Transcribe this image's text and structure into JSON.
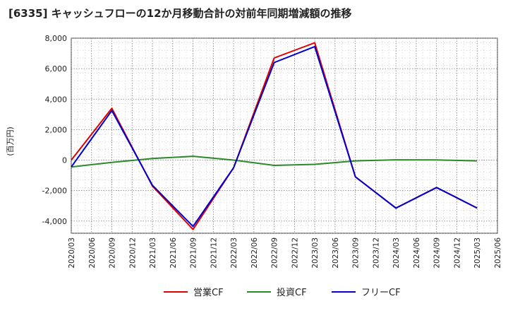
{
  "chart_data": {
    "type": "line",
    "title": "[6335]  キャッシュフローの12か月移動合計の対前年同期増減額の推移",
    "ylabel": "(百万円)",
    "xlabel": "",
    "ylim": [
      -4800,
      8000
    ],
    "yticks": [
      -4000,
      -2000,
      0,
      2000,
      4000,
      6000,
      8000
    ],
    "ytick_labels": [
      "-4,000",
      "-2,000",
      "0",
      "2,000",
      "4,000",
      "6,000",
      "8,000"
    ],
    "grid": true,
    "legend_position": "bottom",
    "x_ticks": [
      "2020/03",
      "2020/06",
      "2020/09",
      "2020/12",
      "2021/03",
      "2021/06",
      "2021/09",
      "2021/12",
      "2022/03",
      "2022/06",
      "2022/09",
      "2022/12",
      "2023/03",
      "2023/06",
      "2023/09",
      "2023/12",
      "2024/03",
      "2024/06",
      "2024/09",
      "2024/12",
      "2025/03",
      "2025/06"
    ],
    "series": [
      {
        "name": "営業CF",
        "color": "#e00000",
        "x": [
          "2020/03",
          "2020/09",
          "2021/03",
          "2021/09",
          "2022/03",
          "2022/09",
          "2023/03",
          "2023/09",
          "2024/03",
          "2024/09",
          "2025/03"
        ],
        "values": [
          0,
          3400,
          -1700,
          -4550,
          -500,
          6700,
          7700,
          -1100,
          -3150,
          -1800,
          -3150
        ]
      },
      {
        "name": "投資CF",
        "color": "#2a8a2a",
        "x": [
          "2020/03",
          "2020/09",
          "2021/03",
          "2021/09",
          "2022/03",
          "2022/09",
          "2023/03",
          "2023/09",
          "2024/03",
          "2024/09",
          "2025/03"
        ],
        "values": [
          -450,
          -150,
          100,
          250,
          0,
          -350,
          -280,
          -50,
          20,
          10,
          -50
        ]
      },
      {
        "name": "フリーCF",
        "color": "#0000cc",
        "x": [
          "2020/03",
          "2020/09",
          "2021/03",
          "2021/09",
          "2022/03",
          "2022/09",
          "2023/03",
          "2023/09",
          "2024/03",
          "2024/09",
          "2025/03"
        ],
        "values": [
          -450,
          3250,
          -1650,
          -4350,
          -500,
          6400,
          7450,
          -1100,
          -3150,
          -1800,
          -3150
        ]
      }
    ]
  }
}
